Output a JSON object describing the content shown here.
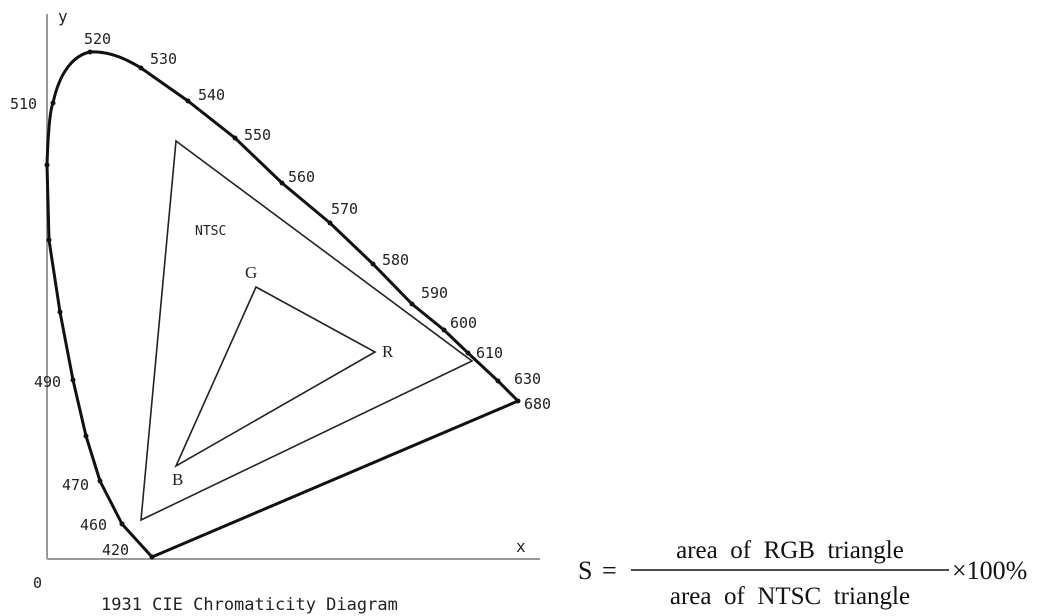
{
  "diagram": {
    "axes": {
      "y_label": "y",
      "x_label": "x",
      "origin_label": "0"
    },
    "caption": "1931 CIE Chromaticity Diagram",
    "wavelength_labels": [
      "510",
      "520",
      "530",
      "540",
      "550",
      "560",
      "570",
      "580",
      "590",
      "600",
      "610",
      "630",
      "680",
      "490",
      "470",
      "460",
      "420"
    ],
    "triangles": {
      "ntsc_label": "NTSC",
      "rgb_vertices": {
        "g": "G",
        "r": "R",
        "b": "B"
      }
    }
  },
  "formula": {
    "lhs": "S",
    "equals": "=",
    "numerator": "area  of  RGB  triangle",
    "denominator": "area  of  NTSC  triangle",
    "multiplier": "×100%"
  }
}
